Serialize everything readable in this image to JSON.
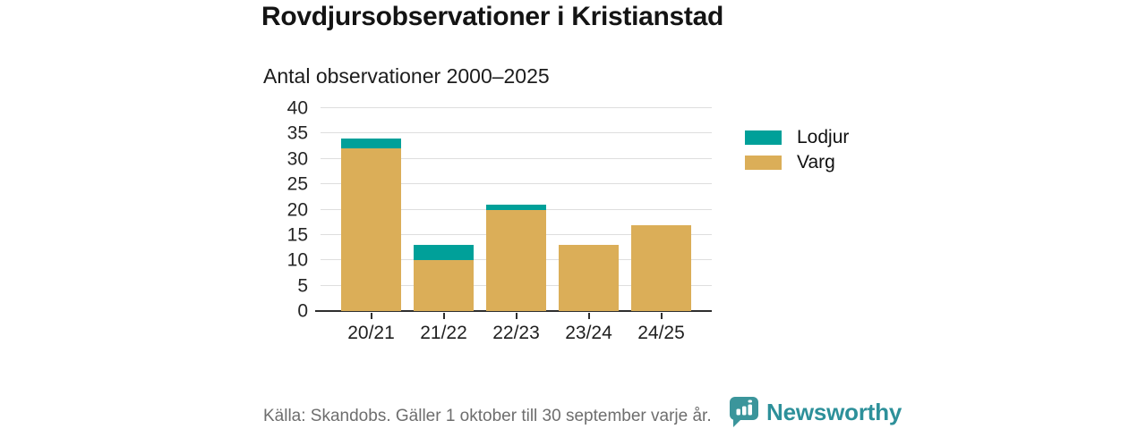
{
  "header": {
    "title": "Rovdjursobservationer i Kristianstad",
    "subtitle": "Antal observationer 2000–2025"
  },
  "legend": [
    {
      "label": "Lodjur",
      "color": "#00a099"
    },
    {
      "label": "Varg",
      "color": "#dbae58"
    }
  ],
  "footer": {
    "source": "Källa: Skandobs. Gäller 1 oktober till 30 september varje år."
  },
  "brand": {
    "name": "Newsworthy",
    "icon": "bar-chart-speech-bubble-icon",
    "icon_color": "#3b959b",
    "text_color": "#2d909a"
  },
  "chart_data": {
    "type": "bar",
    "stacked": true,
    "title": "Rovdjursobservationer i Kristianstad",
    "subtitle": "Antal observationer 2000–2025",
    "categories": [
      "20/21",
      "21/22",
      "22/23",
      "23/24",
      "24/25"
    ],
    "series": [
      {
        "name": "Varg",
        "color": "#dbae58",
        "values": [
          32,
          10,
          20,
          13,
          17
        ]
      },
      {
        "name": "Lodjur",
        "color": "#00a099",
        "values": [
          2,
          3,
          1,
          0,
          0
        ]
      }
    ],
    "totals": [
      34,
      13,
      21,
      13,
      17
    ],
    "xlabel": "",
    "ylabel": "",
    "ylim": [
      0,
      40
    ],
    "yticks": [
      0,
      5,
      10,
      15,
      20,
      25,
      30,
      35,
      40
    ],
    "grid": true,
    "legend_position": "right",
    "grid_color": "#dedede",
    "axis_color": "#2e2e2e"
  }
}
